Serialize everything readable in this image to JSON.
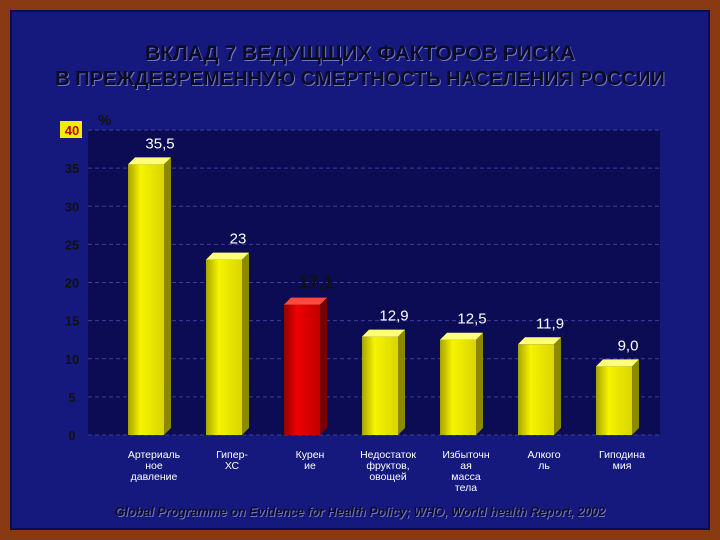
{
  "slide": {
    "title_line_1": "ВКЛАД 7 ВЕДУЩЩИХ ФАКТОРОВ РИСКА",
    "title_line_2": "В ПРЕЖДЕВРЕМЕННУЮ СМЕРТНОСТЬ НАСЕЛЕНИЯ РОССИИ",
    "source": "Global Programme on Evidence for Health Policy; WHO, World health Report, 2002"
  },
  "chart_data": {
    "type": "bar",
    "title": "",
    "ylabel": "%",
    "xlabel": "",
    "ylim": [
      0,
      40
    ],
    "yticks": [
      0,
      5,
      10,
      15,
      20,
      25,
      30,
      35,
      40
    ],
    "grid": true,
    "legend": "none",
    "categories": [
      [
        "Артериаль",
        "ное",
        "давление"
      ],
      [
        "Гипер-",
        "ХС"
      ],
      [
        "Курен",
        "ие"
      ],
      [
        "Недостаток",
        "фруктов,",
        "овощей"
      ],
      [
        "Избыточн",
        "ая",
        "масса",
        "тела"
      ],
      [
        "Алкого",
        "ль"
      ],
      [
        "Гиподина",
        "мия"
      ]
    ],
    "values": [
      35.5,
      23,
      17.1,
      12.9,
      12.5,
      11.9,
      9.0
    ],
    "value_labels": [
      "35,5",
      "23",
      "17,1",
      "12,9",
      "12,5",
      "11,9",
      "9,0"
    ],
    "colors": {
      "default_bar": "#f2ee00",
      "highlight_bar": "#e00000",
      "highlight_index": 2,
      "plot_background": "#0c0c55",
      "grid": "#3a3f9a",
      "label_text": "#ffffff",
      "axis_text": "#111111",
      "value_text_highlight": "#111111"
    }
  }
}
